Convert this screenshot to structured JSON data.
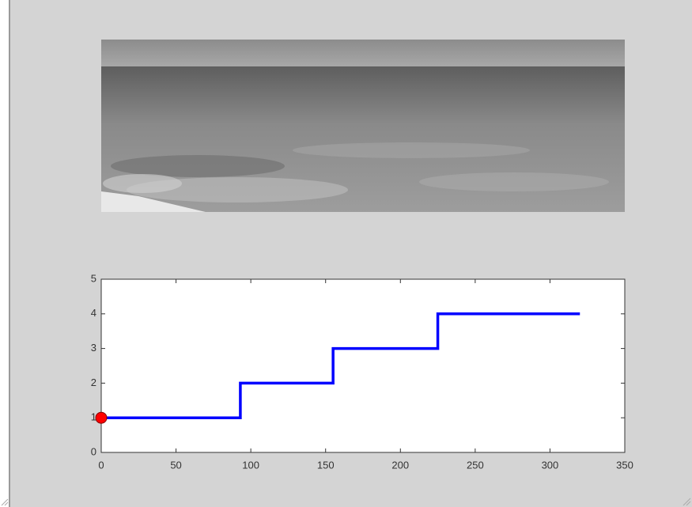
{
  "chart_data": {
    "type": "line",
    "x": [
      0,
      93,
      93,
      155,
      155,
      225,
      225,
      320
    ],
    "series": [
      {
        "color": "#0000ff",
        "values": [
          1,
          1,
          2,
          2,
          3,
          3,
          4,
          4
        ]
      }
    ],
    "marker": {
      "x": 0,
      "value": 1,
      "color": "#ff0000"
    },
    "xlim": [
      0,
      350
    ],
    "xticks": [
      0,
      50,
      100,
      150,
      200,
      250,
      300,
      350
    ],
    "ylim": [
      0,
      5
    ],
    "yticks": [
      0,
      1,
      2,
      3,
      4,
      5
    ]
  }
}
